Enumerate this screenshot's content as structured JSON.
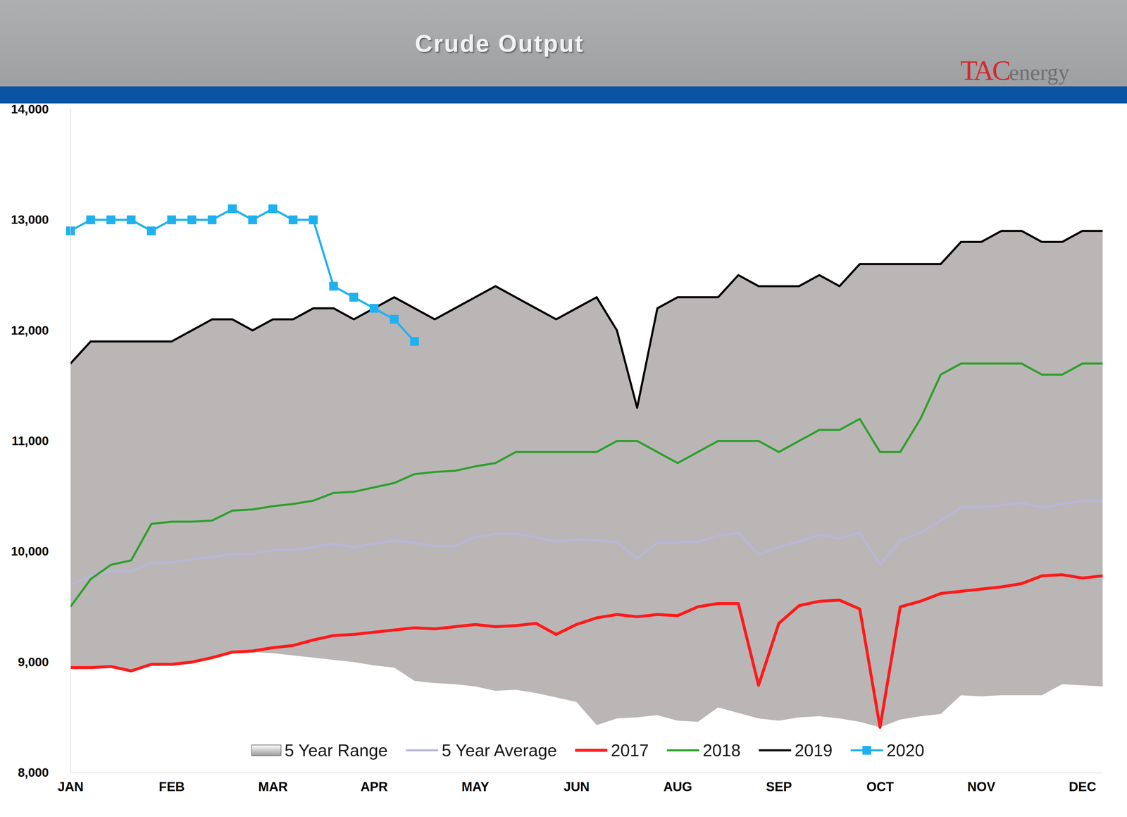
{
  "chart_data": {
    "type": "line",
    "title": "Crude Output",
    "logo": [
      "TAC",
      "energy"
    ],
    "categories": [
      "JAN",
      null,
      null,
      null,
      null,
      "FEB",
      null,
      null,
      null,
      null,
      "MAR",
      null,
      null,
      null,
      null,
      "APR",
      null,
      null,
      null,
      null,
      "MAY",
      null,
      null,
      null,
      null,
      "JUN",
      null,
      null,
      null,
      null,
      "AUG",
      null,
      null,
      null,
      null,
      "SEP",
      null,
      null,
      null,
      null,
      "OCT",
      null,
      null,
      null,
      null,
      "NOV",
      null,
      null,
      null,
      null,
      "DEC",
      null
    ],
    "ylim": [
      8000,
      14000
    ],
    "yticks": [
      {
        "value": 8000,
        "label": "8,000"
      },
      {
        "value": 9000,
        "label": "9,000"
      },
      {
        "value": 10000,
        "label": "10,000"
      },
      {
        "value": 11000,
        "label": "11,000"
      },
      {
        "value": 12000,
        "label": "12,000"
      },
      {
        "value": 13000,
        "label": "13,000"
      },
      {
        "value": 14000,
        "label": "14,000"
      }
    ],
    "grid": false,
    "legend": "bottom",
    "series": [
      {
        "name": "5 Year Range",
        "type": "area",
        "color": "#bab6b6",
        "high": [
          11700,
          11900,
          11900,
          11900,
          11900,
          11900,
          12000,
          12100,
          12100,
          12000,
          12100,
          12100,
          12200,
          12200,
          12100,
          12200,
          12300,
          12200,
          12100,
          12200,
          12300,
          12400,
          12300,
          12200,
          12100,
          12200,
          12300,
          12000,
          11300,
          12200,
          12300,
          12300,
          12300,
          12500,
          12400,
          12400,
          12400,
          12500,
          12400,
          12600,
          12600,
          12600,
          12600,
          12600,
          12800,
          12800,
          12900,
          12900,
          12800,
          12800,
          12900,
          12900
        ],
        "low": [
          8950,
          8950,
          8960,
          8920,
          8980,
          8980,
          9000,
          9040,
          9080,
          9090,
          9080,
          9060,
          9040,
          9020,
          9000,
          8970,
          8950,
          8830,
          8810,
          8800,
          8780,
          8740,
          8750,
          8720,
          8680,
          8640,
          8430,
          8490,
          8500,
          8520,
          8470,
          8460,
          8590,
          8540,
          8490,
          8470,
          8500,
          8510,
          8490,
          8460,
          8410,
          8480,
          8510,
          8530,
          8700,
          8690,
          8700,
          8700,
          8700,
          8800,
          8790,
          8780
        ]
      },
      {
        "name": "5 Year Average",
        "type": "line",
        "color": "#b7b7da",
        "values": [
          9700,
          9780,
          9820,
          9820,
          9900,
          9900,
          9930,
          9950,
          9980,
          9980,
          10010,
          10010,
          10040,
          10070,
          10040,
          10070,
          10100,
          10080,
          10050,
          10050,
          10130,
          10160,
          10160,
          10130,
          10090,
          10110,
          10100,
          10080,
          9940,
          10080,
          10080,
          10090,
          10140,
          10170,
          9970,
          10040,
          10090,
          10150,
          10120,
          10170,
          9880,
          10100,
          10170,
          10280,
          10400,
          10400,
          10420,
          10440,
          10400,
          10430,
          10460,
          10460
        ]
      },
      {
        "name": "2017",
        "type": "line",
        "color": "#ff1a1a",
        "values": [
          8950,
          8950,
          8960,
          8920,
          8980,
          8980,
          9000,
          9040,
          9090,
          9100,
          9130,
          9150,
          9200,
          9240,
          9250,
          9270,
          9290,
          9310,
          9300,
          9320,
          9340,
          9320,
          9330,
          9350,
          9250,
          9340,
          9400,
          9430,
          9410,
          9430,
          9420,
          9500,
          9530,
          9530,
          8790,
          9350,
          9510,
          9550,
          9560,
          9480,
          8410,
          9500,
          9550,
          9620,
          9640,
          9660,
          9680,
          9710,
          9780,
          9790,
          9760,
          9780
        ]
      },
      {
        "name": "2018",
        "type": "line",
        "color": "#2ca02c",
        "values": [
          9500,
          9750,
          9880,
          9920,
          10250,
          10270,
          10270,
          10280,
          10370,
          10380,
          10410,
          10430,
          10460,
          10530,
          10540,
          10580,
          10620,
          10700,
          10720,
          10730,
          10770,
          10800,
          10900,
          10900,
          10900,
          10900,
          10900,
          11000,
          11000,
          10900,
          10800,
          10900,
          11000,
          11000,
          11000,
          10900,
          11000,
          11100,
          11100,
          11200,
          10900,
          10900,
          11200,
          11600,
          11700,
          11700,
          11700,
          11700,
          11600,
          11600,
          11700,
          11700
        ]
      },
      {
        "name": "2019",
        "type": "line",
        "color": "#000000",
        "values": [
          11700,
          11900,
          11900,
          11900,
          11900,
          11900,
          12000,
          12100,
          12100,
          12000,
          12100,
          12100,
          12200,
          12200,
          12100,
          12200,
          12300,
          12200,
          12100,
          12200,
          12300,
          12400,
          12300,
          12200,
          12100,
          12200,
          12300,
          12000,
          11300,
          12200,
          12300,
          12300,
          12300,
          12500,
          12400,
          12400,
          12400,
          12500,
          12400,
          12600,
          12600,
          12600,
          12600,
          12600,
          12800,
          12800,
          12900,
          12900,
          12800,
          12800,
          12900,
          12900
        ]
      },
      {
        "name": "2020",
        "type": "line",
        "color": "#1fb1ef",
        "marker": "square",
        "values": [
          12900,
          13000,
          13000,
          13000,
          12900,
          13000,
          13000,
          13000,
          13100,
          13000,
          13100,
          13000,
          13000,
          12400,
          12300,
          12200,
          12100,
          11900,
          null,
          null,
          null,
          null,
          null,
          null,
          null,
          null,
          null,
          null,
          null,
          null,
          null,
          null,
          null,
          null,
          null,
          null,
          null,
          null,
          null,
          null,
          null,
          null,
          null,
          null,
          null,
          null,
          null,
          null,
          null,
          null,
          null,
          null
        ]
      }
    ]
  }
}
